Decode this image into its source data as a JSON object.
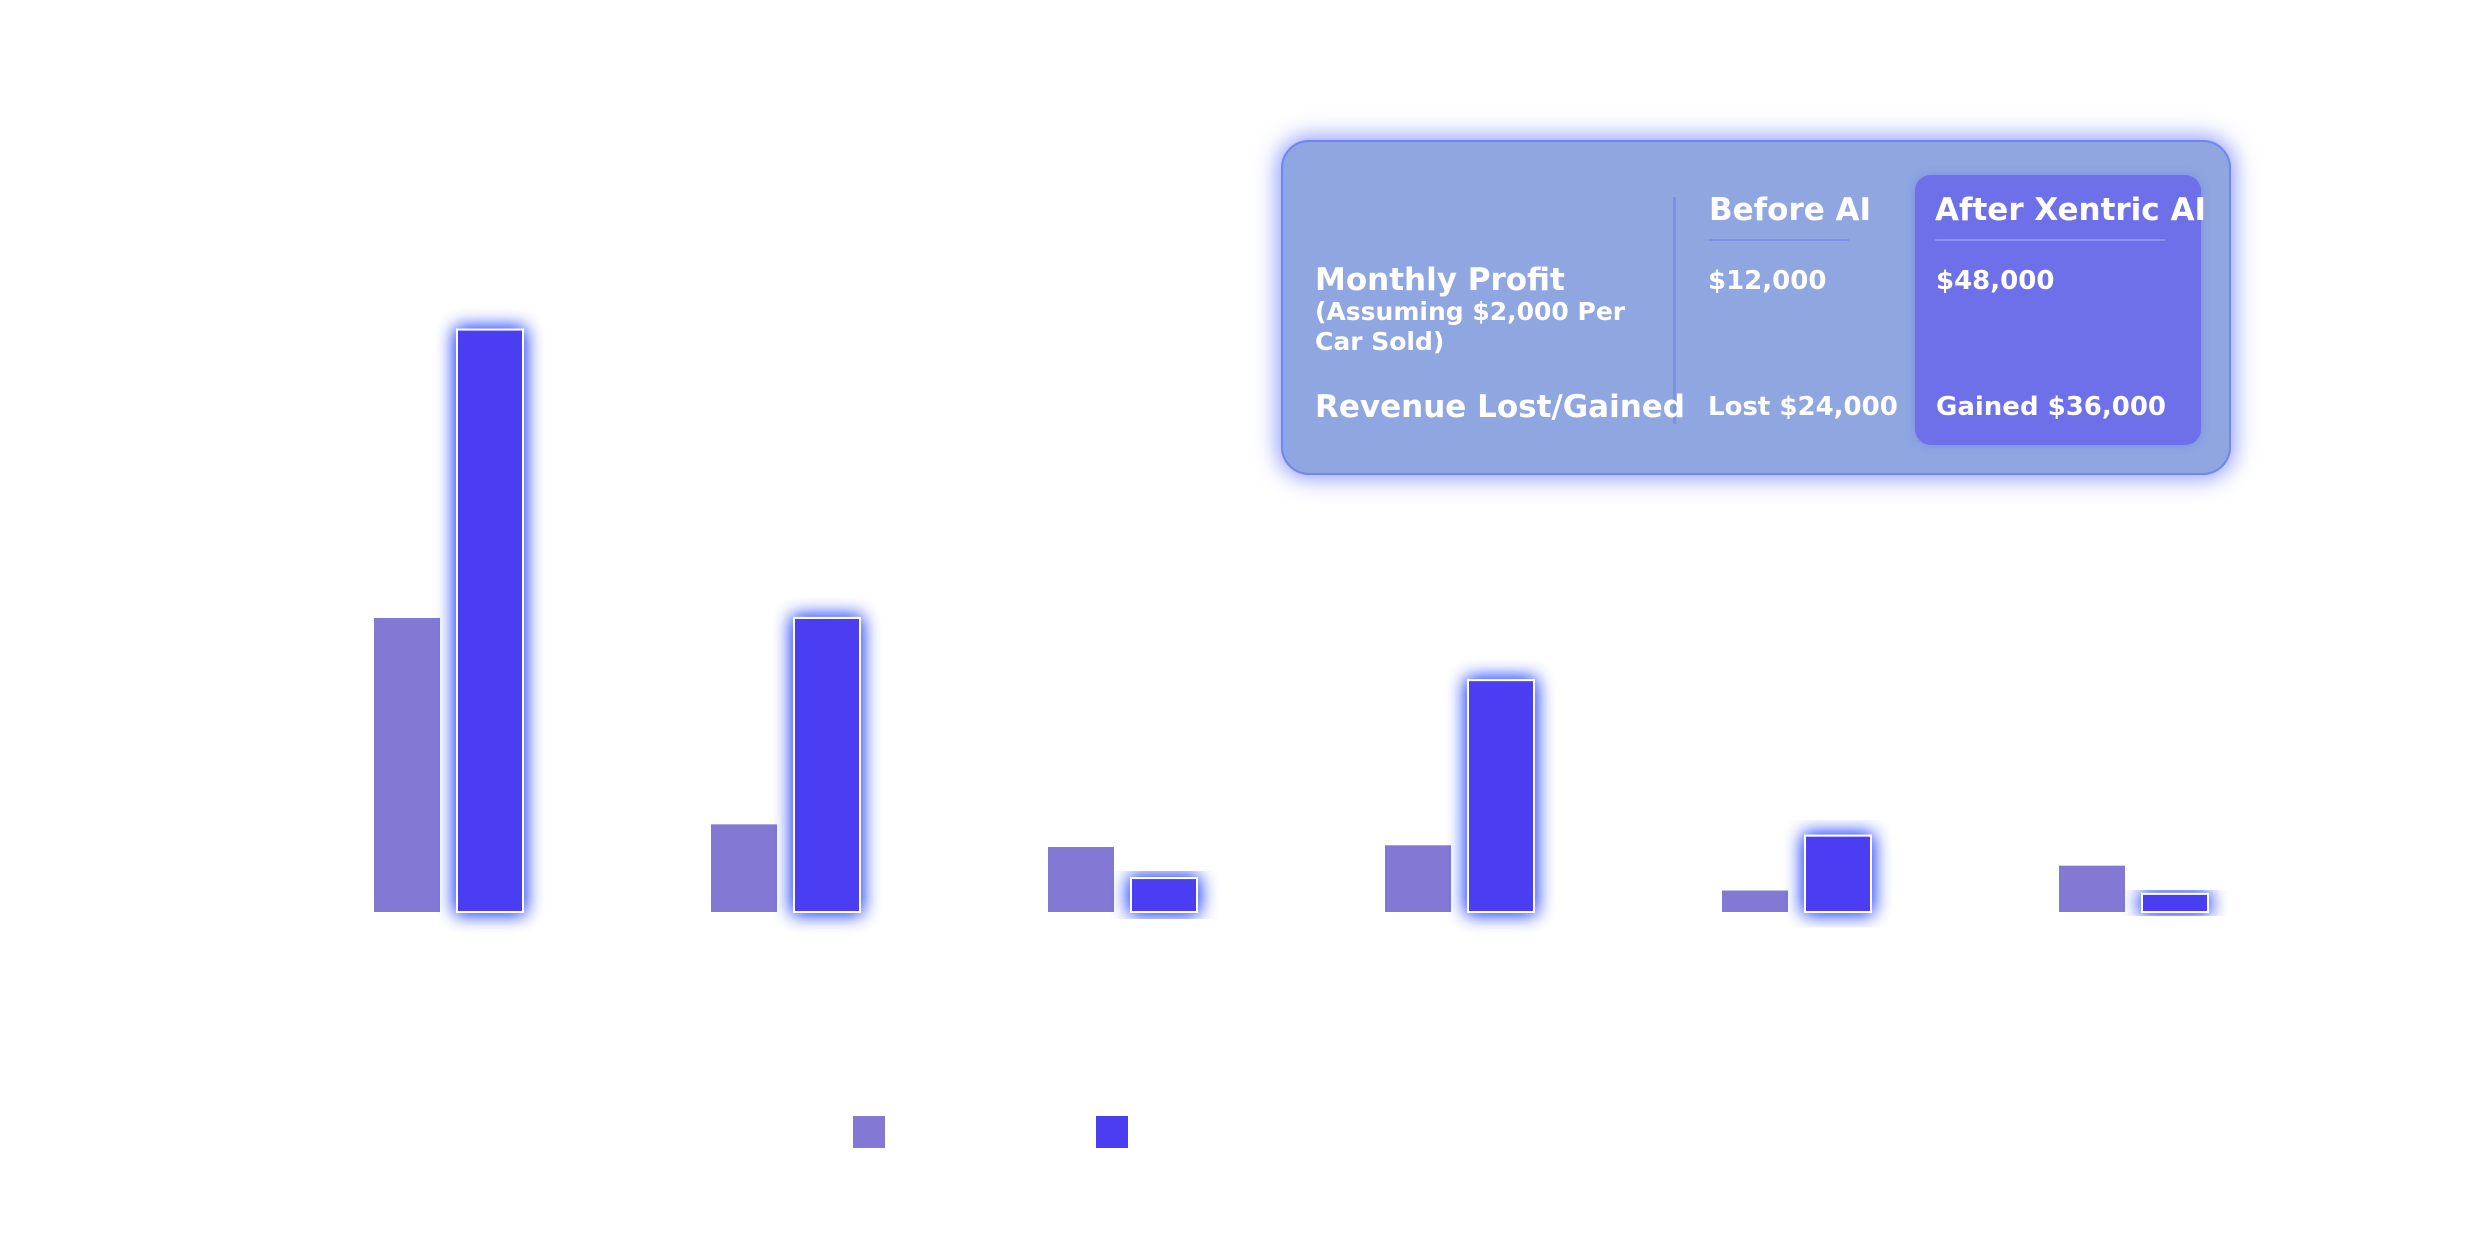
{
  "colors": {
    "before": "#8379d4",
    "after": "#4c3df1",
    "glow": "#3f5bff",
    "panel_bg": "#8fa6e0",
    "panel_highlight": "#6d70e9"
  },
  "chart_data": {
    "type": "bar",
    "note_units": "relative bar heights; no axis or values shown",
    "title": "",
    "xlabel": "",
    "ylabel": "",
    "ylim": [
      0,
      110
    ],
    "categories": [
      "",
      "",
      "",
      "",
      "",
      ""
    ],
    "series": [
      {
        "values": [
          52,
          15.5,
          11.5,
          11.8,
          3.8,
          8.2
        ]
      },
      {
        "values": [
          103,
          52,
          6,
          41,
          13.5,
          3.2
        ]
      }
    ],
    "grid": false
  },
  "comparison": {
    "col_before": "Before AI",
    "col_after": "After Xentric AI",
    "rows": [
      {
        "label": "Monthly Profit",
        "sublabel": "(Assuming $2,000 Per Car Sold)",
        "before": "$12,000",
        "after": "$48,000"
      },
      {
        "label": "Revenue Lost/Gained",
        "sublabel": "",
        "before": "Lost $24,000",
        "after": "Gained $36,000"
      }
    ]
  }
}
